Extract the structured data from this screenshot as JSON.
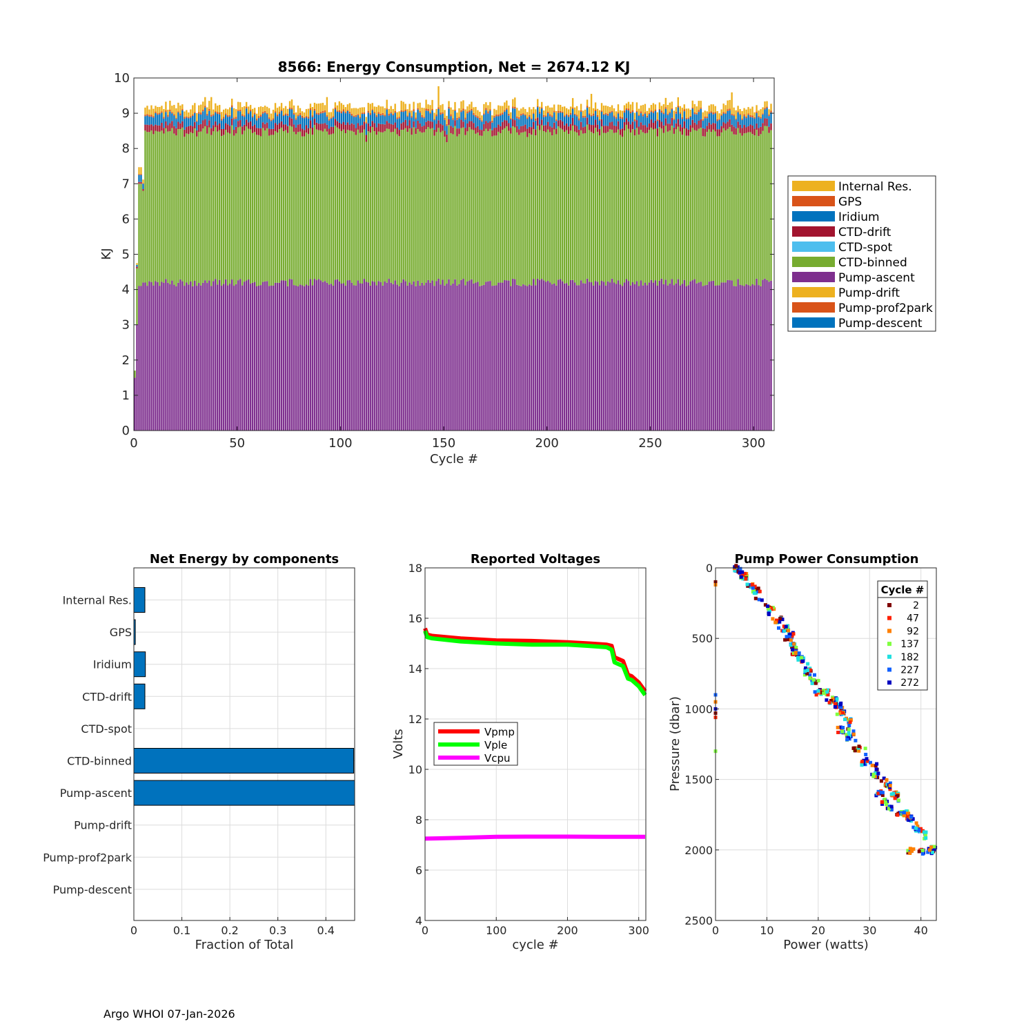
{
  "footer": "Argo WHOI 07-Jan-2026",
  "colors": {
    "internal_res": "#EDB120",
    "gps": "#D95319",
    "iridium": "#0072BD",
    "ctd_drift": "#A2142F",
    "ctd_spot": "#4DBEEE",
    "ctd_binned": "#77AC30",
    "pump_ascent": "#7E2F8E",
    "pump_drift": "#EDB120",
    "pump_prof2park": "#D95319",
    "pump_descent": "#0072BD",
    "hbar": "#0072BD",
    "vpmp": "#FF0000",
    "vple": "#00FF00",
    "vcpu": "#FF00FF"
  },
  "chart_data": [
    {
      "id": "energy",
      "type": "bar",
      "title": "8566: Energy Consumption,  Net = 2674.12 KJ",
      "xlabel": "Cycle #",
      "ylabel": "KJ",
      "xlim": [
        0,
        310
      ],
      "ylim": [
        0,
        10
      ],
      "xticks": [
        0,
        50,
        100,
        150,
        200,
        250,
        300
      ],
      "yticks": [
        0,
        1,
        2,
        3,
        4,
        5,
        6,
        7,
        8,
        9,
        10
      ],
      "grid": false,
      "legend_position": "outside-right",
      "n_cycles": 309,
      "stack_order": [
        "Pump-descent",
        "Pump-prof2park",
        "Pump-drift",
        "Pump-ascent",
        "CTD-binned",
        "CTD-spot",
        "CTD-drift",
        "Iridium",
        "GPS",
        "Internal Res."
      ],
      "legend": [
        "Internal Res.",
        "GPS",
        "Iridium",
        "CTD-drift",
        "CTD-spot",
        "CTD-binned",
        "Pump-ascent",
        "Pump-drift",
        "Pump-prof2park",
        "Pump-descent"
      ],
      "typical_cycle": {
        "Pump-descent": 0.0,
        "Pump-prof2park": 0.0,
        "Pump-drift": 0.0,
        "Pump-ascent": 4.2,
        "CTD-binned": 4.3,
        "CTD-spot": 0.0,
        "CTD-drift": 0.2,
        "Iridium": 0.27,
        "GPS": 0.03,
        "Internal Res.": 0.2
      },
      "early_cycles": [
        {
          "cycle": 0,
          "Pump-ascent": 1.5,
          "CTD-binned": 0.2,
          "CTD-drift": 0.0,
          "Iridium": 0.0,
          "GPS": 0.0,
          "Internal Res.": 0.0
        },
        {
          "cycle": 1,
          "Pump-ascent": 3.0,
          "CTD-binned": 1.6,
          "CTD-drift": 0.05,
          "Iridium": 0.05,
          "GPS": 0.0,
          "Internal Res.": 0.05
        },
        {
          "cycle": 2,
          "Pump-ascent": 4.1,
          "CTD-binned": 2.9,
          "CTD-drift": 0.05,
          "Iridium": 0.2,
          "GPS": 0.02,
          "Internal Res.": 0.2
        },
        {
          "cycle": 3,
          "Pump-ascent": 4.1,
          "CTD-binned": 2.9,
          "CTD-drift": 0.05,
          "Iridium": 0.2,
          "GPS": 0.02,
          "Internal Res.": 0.2
        },
        {
          "cycle": 4,
          "Pump-ascent": 4.2,
          "CTD-binned": 2.6,
          "CTD-drift": 0.05,
          "Iridium": 0.15,
          "GPS": 0.02,
          "Internal Res.": 0.1
        }
      ],
      "dip_cycles": [
        112,
        151
      ],
      "spike_cycles": [
        37,
        93,
        147,
        221,
        289
      ]
    },
    {
      "id": "components",
      "type": "bar",
      "orientation": "horizontal",
      "title": "Net Energy by components",
      "xlabel": "Fraction of Total",
      "xlim": [
        0,
        0.46
      ],
      "xticks": [
        0,
        0.1,
        0.2,
        0.3,
        0.4
      ],
      "xticklabels": [
        "0",
        "0.1",
        "0.2",
        "0.3",
        "0.4"
      ],
      "grid": true,
      "categories": [
        "Internal Res.",
        "GPS",
        "Iridium",
        "CTD-drift",
        "CTD-spot",
        "CTD-binned",
        "Pump-ascent",
        "Pump-drift",
        "Pump-prof2park",
        "Pump-descent"
      ],
      "values": [
        0.023,
        0.003,
        0.024,
        0.023,
        0.0,
        0.458,
        0.47,
        0.0,
        0.0,
        0.0
      ]
    },
    {
      "id": "voltages",
      "type": "line",
      "title": "Reported Voltages",
      "xlabel": "cycle #",
      "ylabel": "Volts",
      "xlim": [
        0,
        310
      ],
      "ylim": [
        4,
        18
      ],
      "xticks": [
        0,
        100,
        200,
        300
      ],
      "yticks": [
        4,
        6,
        8,
        10,
        12,
        14,
        16,
        18
      ],
      "grid": true,
      "legend_position": "middle-left",
      "series": [
        {
          "name": "Vpmp",
          "x": [
            0,
            3,
            10,
            50,
            100,
            150,
            200,
            230,
            255,
            262,
            266,
            270,
            278,
            285,
            290,
            300,
            309
          ],
          "y": [
            15.6,
            15.35,
            15.3,
            15.2,
            15.12,
            15.1,
            15.05,
            15.0,
            14.95,
            14.9,
            14.45,
            14.4,
            14.3,
            13.75,
            13.7,
            13.45,
            13.1
          ]
        },
        {
          "name": "Vple",
          "x": [
            0,
            3,
            10,
            50,
            100,
            150,
            200,
            230,
            255,
            262,
            266,
            270,
            278,
            285,
            290,
            300,
            309
          ],
          "y": [
            15.5,
            15.25,
            15.2,
            15.08,
            15.0,
            14.95,
            14.95,
            14.9,
            14.85,
            14.75,
            14.25,
            14.2,
            14.1,
            13.6,
            13.55,
            13.3,
            12.95
          ]
        },
        {
          "name": "Vcpu",
          "x": [
            0,
            50,
            100,
            150,
            200,
            250,
            309
          ],
          "y": [
            7.25,
            7.28,
            7.32,
            7.33,
            7.33,
            7.32,
            7.32
          ]
        }
      ]
    },
    {
      "id": "pump",
      "type": "scatter",
      "title": "Pump Power Consumption",
      "xlabel": "Power (watts)",
      "ylabel": "Pressure (dbar)",
      "xlim": [
        0,
        43
      ],
      "ylim": [
        0,
        2500
      ],
      "y_reversed": true,
      "xticks": [
        0,
        10,
        20,
        30,
        40
      ],
      "yticks": [
        0,
        500,
        1000,
        1500,
        2000,
        2500
      ],
      "grid": true,
      "legend_title": "Cycle #",
      "legend_position": "top-right",
      "series": [
        {
          "name": "2",
          "color": "#800000"
        },
        {
          "name": "47",
          "color": "#FF2000"
        },
        {
          "name": "92",
          "color": "#FF8000"
        },
        {
          "name": "137",
          "color": "#80FF40"
        },
        {
          "name": "182",
          "color": "#20E0E0"
        },
        {
          "name": "227",
          "color": "#1060FF"
        },
        {
          "name": "272",
          "color": "#0000C0"
        }
      ],
      "trend": {
        "x": [
          4.5,
          42.5
        ],
        "y": [
          0,
          2010
        ]
      },
      "zero_power_points": [
        [
          0,
          100
        ],
        [
          0,
          120
        ],
        [
          0,
          900
        ],
        [
          0,
          950
        ],
        [
          0,
          1000
        ],
        [
          0,
          1030
        ],
        [
          0,
          1060
        ],
        [
          0,
          1300
        ]
      ],
      "clusters": [
        [
          4.3,
          10
        ],
        [
          5.5,
          60
        ],
        [
          6.8,
          120
        ],
        [
          8,
          160
        ],
        [
          11,
          290
        ],
        [
          12.5,
          370
        ],
        [
          13.5,
          430
        ],
        [
          14.5,
          480
        ],
        [
          15,
          560
        ],
        [
          15.5,
          600
        ],
        [
          16.5,
          650
        ],
        [
          18,
          740
        ],
        [
          19,
          800
        ],
        [
          20,
          880
        ],
        [
          21.5,
          880
        ],
        [
          23,
          930
        ],
        [
          24,
          980
        ],
        [
          25,
          1030
        ],
        [
          26,
          1080
        ],
        [
          24.5,
          1150
        ],
        [
          26,
          1200
        ],
        [
          27.5,
          1280
        ],
        [
          29,
          1380
        ],
        [
          31,
          1470
        ],
        [
          32,
          1600
        ],
        [
          33,
          1660
        ],
        [
          34,
          1700
        ],
        [
          35,
          1610
        ],
        [
          36,
          1740
        ],
        [
          37,
          1740
        ],
        [
          38,
          1780
        ],
        [
          39.5,
          1850
        ],
        [
          40.5,
          1880
        ],
        [
          38,
          2010
        ],
        [
          40,
          2010
        ],
        [
          42,
          2010
        ]
      ]
    }
  ]
}
